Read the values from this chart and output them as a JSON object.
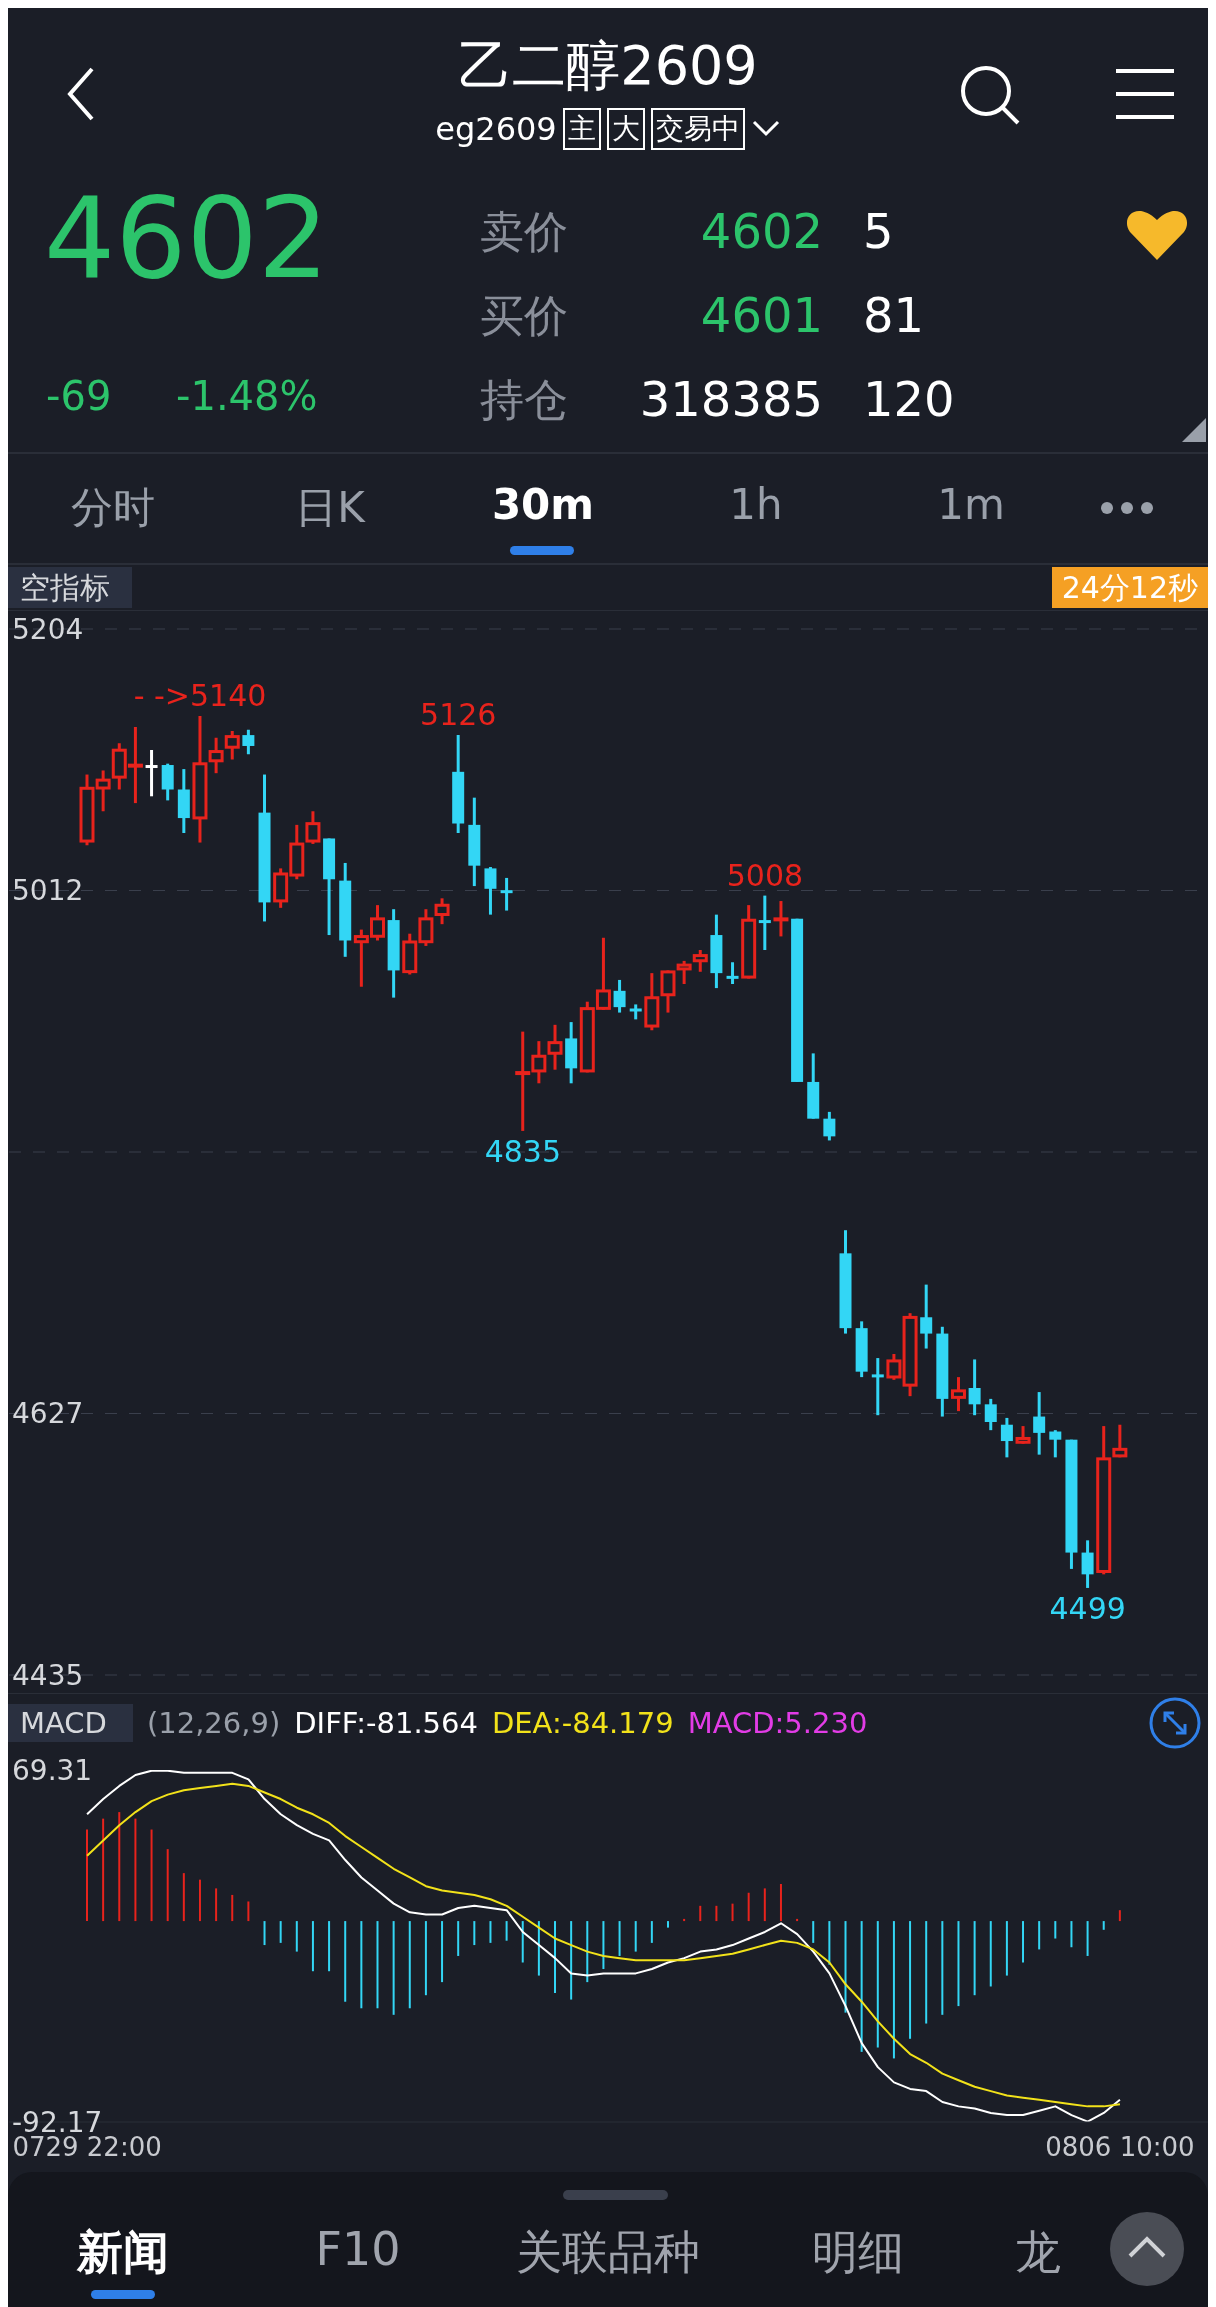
{
  "chart_data": [
    {
      "type": "other",
      "title": "乙二醇2609",
      "subtitle": "eg2609",
      "annotations": [
        "主",
        "大",
        "交易中",
        "4602",
        "-69",
        "-1.48%",
        "卖价",
        "4602",
        "5",
        "买价",
        "4601",
        "81",
        "持仓",
        "318385",
        "120",
        "分时",
        "日K",
        "30m",
        "1h",
        "1m"
      ]
    },
    {
      "type": "candlestick",
      "ylim": [
        4435,
        5204
      ],
      "yticks": [
        5204,
        {
          "value": 5011.75,
          "label": "5012"
        },
        {
          "value": 4819.5,
          "label": null
        },
        {
          "value": 4627.25,
          "label": "4627"
        },
        4435
      ],
      "grid": "y",
      "tick_labels": "y",
      "categories": [
        "0729 22:00",
        null,
        null,
        null,
        null,
        null,
        null,
        null,
        null,
        null,
        null,
        null,
        null,
        null,
        null,
        null,
        null,
        null,
        null,
        null,
        null,
        null,
        null,
        null,
        null,
        null,
        null,
        null,
        null,
        null,
        null,
        null,
        null,
        null,
        null,
        null,
        null,
        null,
        null,
        null,
        null,
        null,
        null,
        null,
        null,
        null,
        null,
        null,
        null,
        null,
        null,
        null,
        null,
        null,
        null,
        null,
        null,
        null,
        null,
        null,
        null,
        null,
        null,
        null,
        "0806 10:00"
      ],
      "ohlc": [
        [
          5047,
          5097,
          5045,
          5088
        ],
        [
          5086,
          5100,
          5070,
          5094
        ],
        [
          5094,
          5120,
          5086,
          5116
        ],
        [
          5103,
          5132,
          5076,
          5105
        ],
        [
          5104,
          5115,
          5081,
          5104
        ],
        [
          5104,
          5105,
          5078,
          5086
        ],
        [
          5086,
          5101,
          5054,
          5065
        ],
        [
          5064,
          5140,
          5047,
          5106
        ],
        [
          5106,
          5124,
          5098,
          5115
        ],
        [
          5116,
          5129,
          5108,
          5126
        ],
        [
          5126,
          5130,
          5112,
          5118
        ],
        [
          5069,
          5097,
          4989,
          5003
        ],
        [
          5003,
          5028,
          4999,
          5025
        ],
        [
          5022,
          5060,
          5020,
          5047
        ],
        [
          5047,
          5070,
          5046,
          5062
        ],
        [
          5050,
          5050,
          4979,
          5020
        ],
        [
          5019,
          5032,
          4963,
          4975
        ],
        [
          4973,
          4983,
          4941,
          4979
        ],
        [
          4977,
          5001,
          4975,
          4992
        ],
        [
          4990,
          4998,
          4933,
          4953
        ],
        [
          4951,
          4980,
          4950,
          4975
        ],
        [
          4973,
          4998,
          4971,
          4992
        ],
        [
          4993,
          5006,
          4987,
          5002
        ],
        [
          5099,
          5126,
          5054,
          5061
        ],
        [
          5060,
          5080,
          5015,
          5030
        ],
        [
          5028,
          5029,
          4994,
          5013
        ],
        [
          5012,
          5021,
          4997,
          5012
        ],
        [
          4878,
          4908,
          4835,
          4879
        ],
        [
          4878,
          4901,
          4870,
          4891
        ],
        [
          4891,
          4913,
          4880,
          4901
        ],
        [
          4903,
          4915,
          4870,
          4881
        ],
        [
          4878,
          4930,
          4878,
          4926
        ],
        [
          4924,
          4977,
          4924,
          4939
        ],
        [
          4938,
          4946,
          4922,
          4926
        ],
        [
          4925,
          4928,
          4917,
          4925
        ],
        [
          4911,
          4951,
          4909,
          4934
        ],
        [
          4934,
          4953,
          4922,
          4953
        ],
        [
          4953,
          4960,
          4943,
          4958
        ],
        [
          4959,
          4968,
          4952,
          4965
        ],
        [
          4979,
          4994,
          4940,
          4951
        ],
        [
          4949,
          4959,
          4943,
          4949
        ],
        [
          4947,
          5001,
          4947,
          4991
        ],
        [
          4990,
          5008,
          4968,
          4990
        ],
        [
          4990,
          5004,
          4978,
          4992
        ],
        [
          4991,
          4991,
          4871,
          4871
        ],
        [
          4871,
          4892,
          4844,
          4844
        ],
        [
          4844,
          4849,
          4828,
          4831
        ],
        [
          4745,
          4762,
          4686,
          4690
        ],
        [
          4690,
          4695,
          4654,
          4658
        ],
        [
          4656,
          4668,
          4626,
          4656
        ],
        [
          4653,
          4671,
          4652,
          4667
        ],
        [
          4647,
          4701,
          4640,
          4699
        ],
        [
          4698,
          4722,
          4675,
          4686
        ],
        [
          4686,
          4691,
          4625,
          4638
        ],
        [
          4638,
          4654,
          4629,
          4645
        ],
        [
          4646,
          4667,
          4626,
          4634
        ],
        [
          4634,
          4638,
          4615,
          4621
        ],
        [
          4619,
          4624,
          4595,
          4607
        ],
        [
          4605,
          4618,
          4605,
          4610
        ],
        [
          4625,
          4643,
          4597,
          4613
        ],
        [
          4614,
          4615,
          4595,
          4608
        ],
        [
          4608,
          4608,
          4513,
          4525
        ],
        [
          4525,
          4534,
          4499,
          4509
        ],
        [
          4510,
          4618,
          4509,
          4595
        ],
        [
          4595,
          4619,
          4595,
          4602
        ]
      ],
      "colors": [
        "#e8231c",
        "#e8231c",
        "#e8231c",
        "#e8231c",
        "#ffffff",
        "#33d6f5",
        "#33d6f5",
        "#e8231c",
        "#e8231c",
        "#e8231c",
        "#33d6f5",
        "#33d6f5",
        "#e8231c",
        "#e8231c",
        "#e8231c",
        "#33d6f5",
        "#33d6f5",
        "#e8231c",
        "#e8231c",
        "#33d6f5",
        "#e8231c",
        "#e8231c",
        "#e8231c",
        "#33d6f5",
        "#33d6f5",
        "#33d6f5",
        "#33d6f5",
        "#e8231c",
        "#e8231c",
        "#e8231c",
        "#33d6f5",
        "#e8231c",
        "#e8231c",
        "#33d6f5",
        "#33d6f5",
        "#e8231c",
        "#e8231c",
        "#e8231c",
        "#e8231c",
        "#33d6f5",
        "#33d6f5",
        "#e8231c",
        "#33d6f5",
        "#e8231c",
        "#33d6f5",
        "#33d6f5",
        "#33d6f5",
        "#33d6f5",
        "#33d6f5",
        "#33d6f5",
        "#e8231c",
        "#e8231c",
        "#33d6f5",
        "#33d6f5",
        "#e8231c",
        "#33d6f5",
        "#33d6f5",
        "#33d6f5",
        "#e8231c",
        "#33d6f5",
        "#33d6f5",
        "#33d6f5",
        "#33d6f5",
        "#e8231c",
        "#e8231c"
      ],
      "annotations": [
        "空指标",
        "24分12秒",
        {
          "text": "- ->5140",
          "y": 5140
        },
        {
          "text": "5126",
          "y": 5126
        },
        {
          "text": "5008",
          "y": 5008
        },
        {
          "text": "4835",
          "y": 4835
        },
        {
          "text": "4499",
          "y": 4499
        }
      ]
    },
    {
      "type": "bar",
      "title": "MACD",
      "subtitle": "(12,26,9)",
      "legend": "top left",
      "annotations": [
        "MACD:5.230"
      ],
      "ylim": [
        -92.17,
        69.31
      ],
      "yticks": [
        69.31,
        -92.17
      ],
      "categories": [
        "0729 22:00",
        null,
        null,
        null,
        null,
        null,
        null,
        null,
        null,
        null,
        null,
        null,
        null,
        null,
        null,
        null,
        null,
        null,
        null,
        null,
        null,
        null,
        null,
        null,
        null,
        null,
        null,
        null,
        null,
        null,
        null,
        null,
        null,
        null,
        null,
        null,
        null,
        null,
        null,
        null,
        null,
        null,
        null,
        null,
        null,
        null,
        null,
        null,
        null,
        null,
        null,
        null,
        null,
        null,
        null,
        null,
        null,
        null,
        null,
        null,
        null,
        null,
        null,
        null,
        "0806 10:00"
      ],
      "series": [
        {
          "type": "bar",
          "colors": [
            "#e8231c",
            "#e8231c",
            "#e8231c",
            "#e8231c",
            "#e8231c",
            "#e8231c",
            "#e8231c",
            "#e8231c",
            "#e8231c",
            "#e8231c",
            "#e8231c",
            "#33d6f5",
            "#33d6f5",
            "#33d6f5",
            "#33d6f5",
            "#33d6f5",
            "#33d6f5",
            "#33d6f5",
            "#33d6f5",
            "#33d6f5",
            "#33d6f5",
            "#33d6f5",
            "#33d6f5",
            "#33d6f5",
            "#33d6f5",
            "#33d6f5",
            "#33d6f5",
            "#33d6f5",
            "#33d6f5",
            "#33d6f5",
            "#33d6f5",
            "#33d6f5",
            "#33d6f5",
            "#33d6f5",
            "#33d6f5",
            "#33d6f5",
            "#33d6f5",
            "#e8231c",
            "#e8231c",
            "#e8231c",
            "#e8231c",
            "#e8231c",
            "#e8231c",
            "#e8231c",
            "#e8231c",
            "#33d6f5",
            "#33d6f5",
            "#33d6f5",
            "#33d6f5",
            "#33d6f5",
            "#33d6f5",
            "#33d6f5",
            "#33d6f5",
            "#33d6f5",
            "#33d6f5",
            "#33d6f5",
            "#33d6f5",
            "#33d6f5",
            "#33d6f5",
            "#33d6f5",
            "#33d6f5",
            "#33d6f5",
            "#33d6f5",
            "#33d6f5",
            "#e8231c"
          ],
          "values": [
            42,
            47,
            50,
            47,
            42,
            33,
            22,
            19,
            15,
            12,
            9,
            -11,
            -10,
            -14,
            -23,
            -23,
            -37,
            -40,
            -40,
            -43,
            -40,
            -34,
            -28,
            -16,
            -11,
            -10,
            -9,
            -19,
            -25,
            -33,
            -36,
            -28,
            -22,
            -16,
            -14,
            -10,
            -3,
            1,
            7,
            7,
            8,
            13,
            15,
            17,
            1,
            -10,
            -20,
            -42,
            -60,
            -58,
            -63,
            -54,
            -47,
            -43,
            -39,
            -34,
            -30,
            -25,
            -19,
            -13,
            -8,
            -12,
            -16,
            -4,
            5
          ]
        },
        {
          "name": "DIFF:-81.564",
          "type": "line",
          "color": "#ffffff",
          "values": [
            49,
            56,
            62,
            67,
            69,
            69,
            68,
            68,
            68,
            68,
            65,
            56,
            49,
            44,
            40,
            37,
            28,
            20,
            14,
            8,
            4,
            3,
            3,
            6,
            7,
            6,
            5,
            -5,
            -11,
            -17,
            -24,
            -25,
            -24,
            -24,
            -24,
            -22,
            -19,
            -17,
            -14,
            -13,
            -11,
            -8,
            -5,
            -1,
            -6,
            -14,
            -24,
            -39,
            -56,
            -67,
            -74,
            -77,
            -78,
            -83,
            -85,
            -86,
            -88,
            -89,
            -89,
            -87,
            -85,
            -89,
            -92,
            -88,
            -82
          ]
        },
        {
          "name": "DEA:-84.179",
          "type": "line",
          "color": "#f2e21a",
          "values": [
            30,
            37,
            44,
            50,
            55,
            58,
            60,
            61,
            62,
            63,
            62,
            59,
            56,
            52,
            49,
            45,
            39,
            34,
            29,
            24,
            20,
            16,
            14,
            13,
            12,
            10,
            7,
            2,
            -3,
            -8,
            -11,
            -14,
            -16,
            -17,
            -18,
            -18,
            -18,
            -18,
            -17,
            -16,
            -15,
            -13,
            -11,
            -9,
            -10,
            -13,
            -19,
            -29,
            -37,
            -46,
            -54,
            -61,
            -65,
            -70,
            -73,
            -76,
            -78,
            -80,
            -81,
            -82,
            -83,
            -84,
            -85,
            -85,
            -84
          ]
        }
      ]
    },
    {
      "type": "other",
      "annotations": [
        "新闻",
        "F10",
        "关联品种",
        "明细",
        "龙"
      ]
    }
  ]
}
